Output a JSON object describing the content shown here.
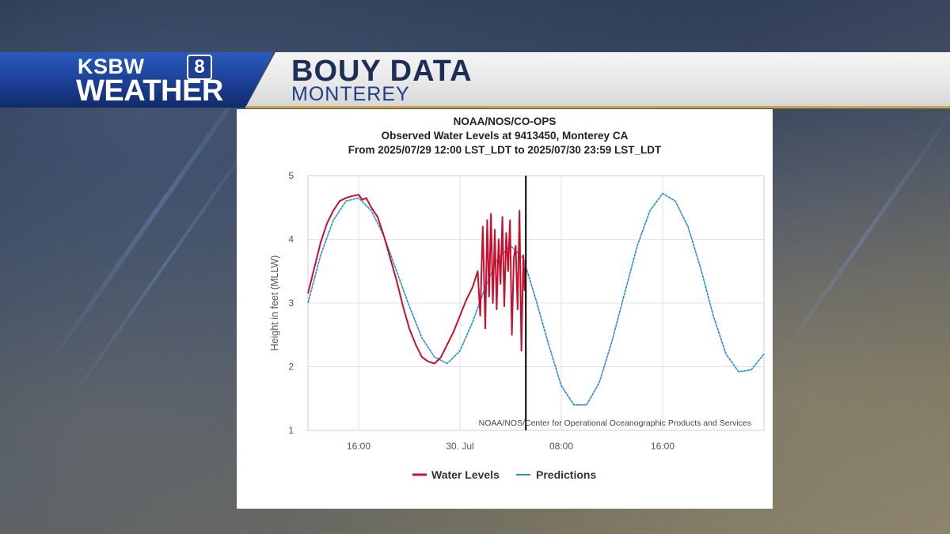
{
  "broadcast": {
    "logo_top": "KSBW",
    "logo_number": "8",
    "logo_bottom": "WEATHER",
    "headline": "BOUY DATA",
    "subheadline": "MONTEREY"
  },
  "colors": {
    "observed": "#c8102e",
    "predicted": "#2b8fd6",
    "banner_blue": "#1b3f95",
    "accent_gold": "#c9a442"
  },
  "chart_data": {
    "type": "line",
    "title_lines": [
      "NOAA/NOS/CO-OPS",
      "Observed Water Levels at 9413450, Monterey CA",
      "From 2025/07/29 12:00 LST_LDT to 2025/07/30 23:59 LST_LDT"
    ],
    "ylabel": "Height in feet (MLLW)",
    "xlabel": "",
    "x_unit": "hours from 2025/07/29 12:00 LST_LDT",
    "xlim": [
      12,
      48
    ],
    "ylim": [
      1,
      5
    ],
    "y_ticks": [
      1,
      2,
      3,
      4,
      5
    ],
    "x_ticks": [
      {
        "x": 16,
        "label": "16:00"
      },
      {
        "x": 24,
        "label": "30. Jul"
      },
      {
        "x": 32,
        "label": "08:00"
      },
      {
        "x": 40,
        "label": "16:00"
      }
    ],
    "grid": true,
    "legend_position": "bottom-center",
    "credit": "NOAA/NOS/Center for Operational Oceanographic Products and Services",
    "current_time_marker_x": 29.2,
    "series": [
      {
        "name": "Water Levels",
        "color": "#c8102e",
        "x": [
          12.0,
          12.5,
          13.0,
          13.5,
          14.0,
          14.5,
          15.0,
          15.5,
          16.0,
          16.3,
          16.6,
          17.0,
          17.5,
          18.0,
          18.5,
          19.0,
          19.5,
          20.0,
          20.5,
          21.0,
          21.5,
          22.0,
          22.5,
          23.0,
          23.5,
          24.0,
          24.5,
          25.0,
          25.4,
          25.6,
          25.8,
          26.0,
          26.15,
          26.3,
          26.45,
          26.6,
          26.75,
          26.9,
          27.05,
          27.2,
          27.35,
          27.5,
          27.65,
          27.8,
          27.95,
          28.1,
          28.25,
          28.4,
          28.55,
          28.7,
          28.85,
          29.0,
          29.1,
          29.2
        ],
        "values": [
          3.15,
          3.55,
          3.95,
          4.25,
          4.45,
          4.6,
          4.65,
          4.68,
          4.7,
          4.62,
          4.65,
          4.5,
          4.35,
          4.05,
          3.7,
          3.35,
          2.95,
          2.6,
          2.35,
          2.15,
          2.08,
          2.05,
          2.15,
          2.35,
          2.55,
          2.8,
          3.05,
          3.25,
          3.5,
          2.8,
          4.2,
          2.6,
          4.3,
          3.1,
          4.4,
          3.0,
          4.15,
          2.9,
          4.0,
          3.3,
          4.35,
          2.95,
          4.1,
          3.5,
          4.3,
          2.5,
          3.7,
          3.9,
          2.9,
          4.45,
          2.25,
          3.75,
          3.2,
          3.7
        ]
      },
      {
        "name": "Predictions",
        "color": "#2b8fd6",
        "x": [
          12.0,
          13.0,
          14.0,
          15.0,
          16.0,
          17.0,
          18.0,
          19.0,
          20.0,
          21.0,
          22.0,
          23.0,
          24.0,
          25.0,
          26.0,
          27.0,
          28.0,
          29.0,
          30.0,
          31.0,
          32.0,
          33.0,
          34.0,
          35.0,
          36.0,
          37.0,
          38.0,
          39.0,
          40.0,
          41.0,
          42.0,
          43.0,
          44.0,
          45.0,
          46.0,
          47.0,
          48.0
        ],
        "values": [
          3.0,
          3.75,
          4.3,
          4.6,
          4.65,
          4.45,
          4.05,
          3.5,
          2.95,
          2.45,
          2.15,
          2.05,
          2.25,
          2.7,
          3.25,
          3.7,
          3.9,
          3.7,
          3.05,
          2.35,
          1.7,
          1.4,
          1.4,
          1.75,
          2.4,
          3.15,
          3.9,
          4.45,
          4.72,
          4.6,
          4.2,
          3.55,
          2.8,
          2.2,
          1.92,
          1.95,
          2.2
        ]
      }
    ]
  }
}
